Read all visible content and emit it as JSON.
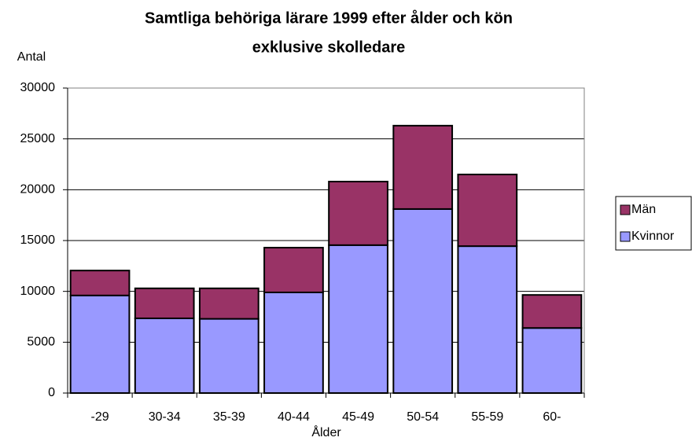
{
  "chart_data": {
    "type": "stacked-bar",
    "title": [
      "Samtliga behöriga lärare 1999 efter ålder och kön",
      "exklusive skolledare"
    ],
    "y_label": "Antal",
    "x_label": "Ålder",
    "categories": [
      "-29",
      "30-34",
      "35-39",
      "40-44",
      "45-49",
      "50-54",
      "55-59",
      "60-"
    ],
    "series": [
      {
        "name": "Kvinnor",
        "color": "#9999ff",
        "values": [
          9600,
          7350,
          7300,
          9900,
          14550,
          18100,
          14450,
          6400
        ]
      },
      {
        "name": "Män",
        "color": "#993366",
        "values": [
          2450,
          2950,
          3000,
          4400,
          6250,
          8200,
          7050,
          3250
        ]
      }
    ],
    "ylim": [
      0,
      30000
    ],
    "yticks": [
      0,
      5000,
      10000,
      15000,
      20000,
      25000,
      30000
    ],
    "grid": true,
    "legend": "right"
  }
}
